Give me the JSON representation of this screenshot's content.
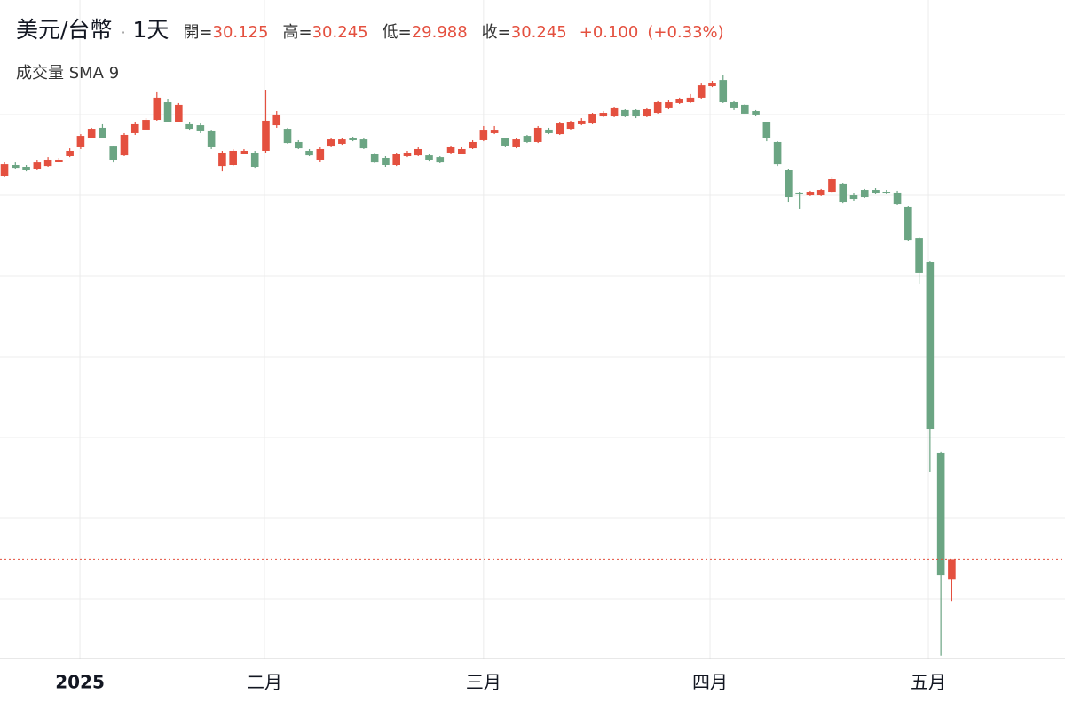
{
  "header": {
    "symbol": "美元/台幣",
    "separator": "·",
    "interval": "1天",
    "open_label": "開=",
    "high_label": "高=",
    "low_label": "低=",
    "close_label": "收=",
    "change": "+0.100",
    "change_pct": "(+0.33%)",
    "indicator": "成交量 SMA 9"
  },
  "chart_data": {
    "type": "candlestick",
    "up_color": "#e4503f",
    "down_color": "#6ba583",
    "last_price_line": true,
    "xlim": [
      -0.41,
      97.4
    ],
    "xticks": [
      {
        "value": 6.93,
        "label": "2025"
      },
      {
        "value": 23.88,
        "label": "二月"
      },
      {
        "value": 44.0,
        "label": "三月"
      },
      {
        "value": 64.8,
        "label": "四月"
      },
      {
        "value": 84.85,
        "label": "五月"
      }
    ],
    "ylim": [
      29.632,
      33.709
    ],
    "ygrid": [
      30,
      30.5,
      31,
      31.5,
      32,
      32.5,
      33
    ],
    "open": [
      32.621,
      32.687,
      32.676,
      32.665,
      32.681,
      32.709,
      32.742,
      32.797,
      32.857,
      32.918,
      32.802,
      32.747,
      32.885,
      32.907,
      32.967,
      33.077,
      32.956,
      32.94,
      32.934,
      32.896,
      32.681,
      32.687,
      32.758,
      32.764,
      32.775,
      32.934,
      32.912,
      32.83,
      32.775,
      32.72,
      32.802,
      32.819,
      32.852,
      32.846,
      32.758,
      32.731,
      32.687,
      32.742,
      32.747,
      32.747,
      32.736,
      32.764,
      32.758,
      32.791,
      32.841,
      32.885,
      32.852,
      32.797,
      32.868,
      32.83,
      32.907,
      32.879,
      32.912,
      32.94,
      32.945,
      32.989,
      32.989,
      33.028,
      33.028,
      32.989,
      33.011,
      33.039,
      33.072,
      33.077,
      33.105,
      33.176,
      33.214,
      33.077,
      33.061,
      33.022,
      32.951,
      32.83,
      32.659,
      32.517,
      32.5,
      32.5,
      32.522,
      32.572,
      32.5,
      32.533,
      32.533,
      32.522,
      32.517,
      32.429,
      32.236,
      32.088,
      30.907,
      30.125
    ],
    "high": [
      32.709,
      32.703,
      32.687,
      32.72,
      32.736,
      32.731,
      32.791,
      32.879,
      32.918,
      32.94,
      32.808,
      32.885,
      32.951,
      32.978,
      33.138,
      33.094,
      33.072,
      32.951,
      32.945,
      32.901,
      32.775,
      32.786,
      32.786,
      32.775,
      33.154,
      33.022,
      32.918,
      32.841,
      32.786,
      32.797,
      32.852,
      32.852,
      32.863,
      32.857,
      32.764,
      32.742,
      32.764,
      32.775,
      32.797,
      32.753,
      32.742,
      32.808,
      32.797,
      32.841,
      32.929,
      32.929,
      32.857,
      32.852,
      32.874,
      32.929,
      32.918,
      32.956,
      32.962,
      32.978,
      33.011,
      33.022,
      33.044,
      33.033,
      33.033,
      33.039,
      33.083,
      33.088,
      33.105,
      33.127,
      33.192,
      33.209,
      33.247,
      33.083,
      33.066,
      33.028,
      32.956,
      32.835,
      32.665,
      32.522,
      32.528,
      32.539,
      32.615,
      32.577,
      32.511,
      32.539,
      32.544,
      32.533,
      32.528,
      32.434,
      32.242,
      32.093,
      30.913,
      30.245
    ],
    "low": [
      32.61,
      32.665,
      32.648,
      32.659,
      32.676,
      32.703,
      32.736,
      32.786,
      32.852,
      32.852,
      32.703,
      32.742,
      32.874,
      32.901,
      32.962,
      32.951,
      32.951,
      32.901,
      32.885,
      32.786,
      32.648,
      32.681,
      32.753,
      32.67,
      32.764,
      32.918,
      32.819,
      32.786,
      32.742,
      32.709,
      32.797,
      32.813,
      32.835,
      32.786,
      32.698,
      32.676,
      32.681,
      32.736,
      32.742,
      32.714,
      32.698,
      32.758,
      32.753,
      32.786,
      32.835,
      32.879,
      32.797,
      32.791,
      32.824,
      32.824,
      32.879,
      32.874,
      32.907,
      32.934,
      32.94,
      32.984,
      32.984,
      32.984,
      32.978,
      32.984,
      33.006,
      33.033,
      33.066,
      33.072,
      33.099,
      33.17,
      33.072,
      33.028,
      33.0,
      32.989,
      32.835,
      32.681,
      32.456,
      32.418,
      32.495,
      32.495,
      32.517,
      32.45,
      32.467,
      32.484,
      32.506,
      32.506,
      32.44,
      32.22,
      31.951,
      30.786,
      29.65,
      29.988
    ],
    "close": [
      32.692,
      32.67,
      32.659,
      32.703,
      32.72,
      32.72,
      32.775,
      32.868,
      32.912,
      32.857,
      32.72,
      32.874,
      32.94,
      32.967,
      33.105,
      32.956,
      33.061,
      32.912,
      32.896,
      32.797,
      32.764,
      32.775,
      32.775,
      32.676,
      32.962,
      32.995,
      32.824,
      32.791,
      32.747,
      32.786,
      32.846,
      32.846,
      32.841,
      32.791,
      32.703,
      32.687,
      32.758,
      32.764,
      32.786,
      32.72,
      32.703,
      32.797,
      32.786,
      32.83,
      32.901,
      32.901,
      32.808,
      32.846,
      32.83,
      32.918,
      32.885,
      32.945,
      32.951,
      32.962,
      33.0,
      33.011,
      33.039,
      32.989,
      32.989,
      33.033,
      33.077,
      33.077,
      33.094,
      33.105,
      33.181,
      33.198,
      33.077,
      33.039,
      33.006,
      32.995,
      32.852,
      32.692,
      32.489,
      32.506,
      32.522,
      32.533,
      32.599,
      32.456,
      32.478,
      32.489,
      32.511,
      32.511,
      32.445,
      32.225,
      32.017,
      31.055,
      30.148,
      30.245
    ]
  }
}
